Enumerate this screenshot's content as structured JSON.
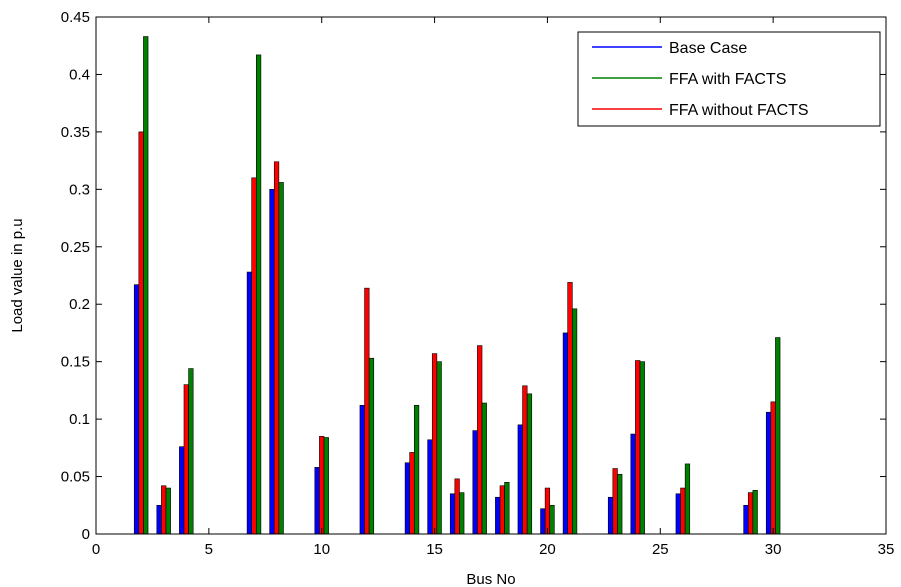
{
  "chart_data": {
    "type": "bar",
    "xlabel": "Bus No",
    "ylabel": "Load value in p.u",
    "xlim": [
      0,
      35
    ],
    "ylim": [
      0,
      0.45
    ],
    "xticks": [
      0,
      5,
      10,
      15,
      20,
      25,
      30,
      35
    ],
    "yticks": [
      0,
      0.05,
      0.1,
      0.15,
      0.2,
      0.25,
      0.3,
      0.35,
      0.4,
      0.45
    ],
    "xtick_labels": [
      "0",
      "5",
      "10",
      "15",
      "20",
      "25",
      "30",
      "35"
    ],
    "ytick_labels": [
      "0",
      "0.05",
      "0.1",
      "0.15",
      "0.2",
      "0.25",
      "0.3",
      "0.35",
      "0.4",
      "0.45"
    ],
    "grid": false,
    "legend_position": "top-right",
    "categories": [
      2,
      3,
      4,
      7,
      8,
      10,
      12,
      14,
      15,
      16,
      17,
      18,
      19,
      20,
      21,
      23,
      24,
      26,
      29,
      30
    ],
    "series": [
      {
        "name": "Base Case",
        "color": "#0000ff",
        "values": [
          0.217,
          0.025,
          0.076,
          0.228,
          0.3,
          0.058,
          0.112,
          0.062,
          0.082,
          0.035,
          0.09,
          0.032,
          0.095,
          0.022,
          0.175,
          0.032,
          0.087,
          0.035,
          0.025,
          0.106
        ]
      },
      {
        "name": "FFA without FACTS",
        "color": "#ff0000",
        "values": [
          0.35,
          0.042,
          0.13,
          0.31,
          0.324,
          0.085,
          0.214,
          0.071,
          0.157,
          0.048,
          0.164,
          0.042,
          0.129,
          0.04,
          0.219,
          0.057,
          0.151,
          0.04,
          0.036,
          0.115
        ]
      },
      {
        "name": "FFA with FACTS",
        "color": "#008000",
        "values": [
          0.433,
          0.04,
          0.144,
          0.417,
          0.306,
          0.084,
          0.153,
          0.112,
          0.15,
          0.036,
          0.114,
          0.045,
          0.122,
          0.025,
          0.196,
          0.052,
          0.15,
          0.061,
          0.038,
          0.171
        ]
      }
    ],
    "legend_order": [
      "Base Case",
      "FFA with FACTS",
      "FFA without FACTS"
    ]
  }
}
